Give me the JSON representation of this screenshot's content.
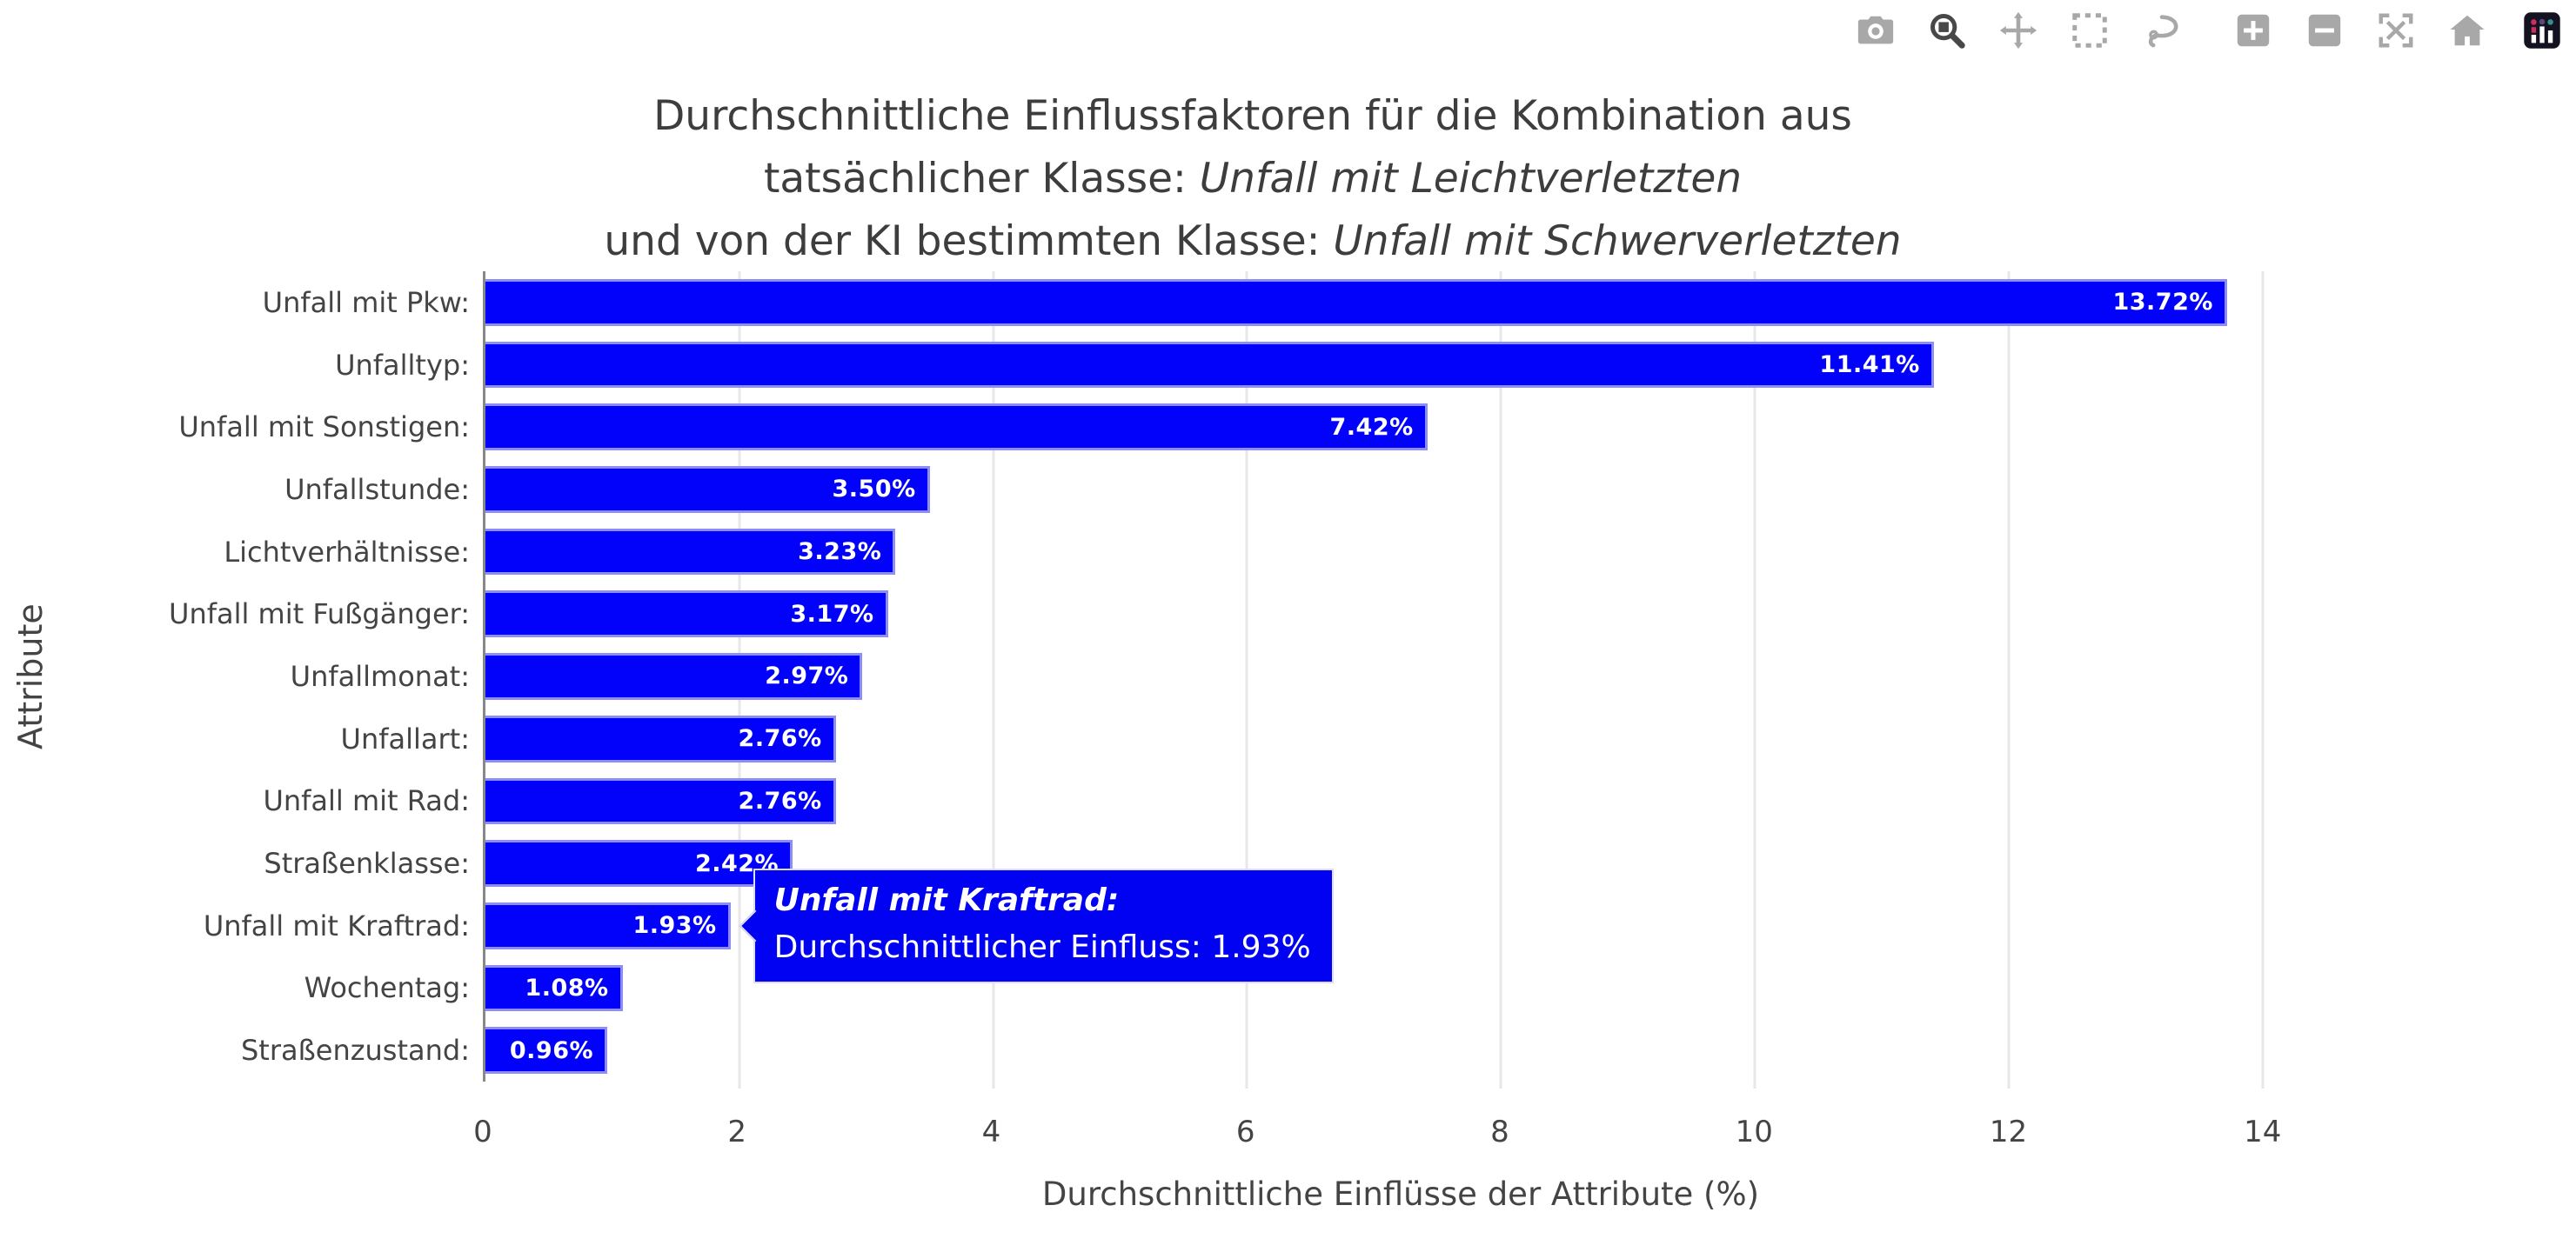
{
  "colors": {
    "bar": "#0202fa",
    "bar_border": "#8d8dfa",
    "tooltip_bg": "#0202f2",
    "tooltip_border": "#dcdcf5",
    "grid": "#e7e7e7",
    "axis": "#888888",
    "text": "#444444",
    "modebar": "#a8a8a8",
    "modebar_active": "#484848",
    "paper": "#ffffff"
  },
  "modebar": {
    "icons": [
      {
        "name": "camera-icon",
        "active": false
      },
      {
        "name": "zoom-icon",
        "active": true
      },
      {
        "name": "pan-icon",
        "active": false
      },
      {
        "name": "box-select-icon",
        "active": false
      },
      {
        "name": "lasso-select-icon",
        "active": false
      },
      {
        "name": "zoom-in-icon",
        "active": false
      },
      {
        "name": "zoom-out-icon",
        "active": false
      },
      {
        "name": "autoscale-icon",
        "active": false
      },
      {
        "name": "home-icon",
        "active": false
      },
      {
        "name": "plotly-logo-icon",
        "active": false
      }
    ]
  },
  "title": {
    "line1": "Durchschnittliche Einflussfaktoren für die Kombination aus",
    "line2_prefix": "tatsächlicher Klasse: ",
    "line2_italic": "Unfall mit Leichtverletzten",
    "line3_prefix": "und von der KI bestimmten Klasse: ",
    "line3_italic": "Unfall mit Schwerverletzten"
  },
  "chart_data": {
    "type": "bar",
    "orientation": "horizontal",
    "title": "Durchschnittliche Einflussfaktoren für die Kombination aus tatsächlicher Klasse: Unfall mit Leichtverletzten und von der KI bestimmten Klasse: Unfall mit Schwerverletzten",
    "categories": [
      "Unfall mit Pkw:",
      "Unfalltyp:",
      "Unfall mit Sonstigen:",
      "Unfallstunde:",
      "Lichtverhältnisse:",
      "Unfall mit Fußgänger:",
      "Unfallmonat:",
      "Unfallart:",
      "Unfall mit Rad:",
      "Straßenklasse:",
      "Unfall mit Kraftrad:",
      "Wochentag:",
      "Straßenzustand:"
    ],
    "values": [
      13.72,
      11.41,
      7.42,
      3.5,
      3.23,
      3.17,
      2.97,
      2.76,
      2.76,
      2.42,
      1.93,
      1.08,
      0.96
    ],
    "labels": [
      "13.72%",
      "11.41%",
      "7.42%",
      "3.50%",
      "3.23%",
      "3.17%",
      "2.97%",
      "2.76%",
      "2.76%",
      "2.42%",
      "1.93%",
      "1.08%",
      "0.96%"
    ],
    "xlabel": "Durchschnittliche Einflüsse der Attribute (%)",
    "ylabel": "Attribute",
    "xticks": [
      0,
      2,
      4,
      6,
      8,
      10,
      12,
      14
    ],
    "xlim": [
      0,
      14.44
    ],
    "grid": true,
    "legend": false,
    "bar_label_position": "inside-end"
  },
  "tooltip": {
    "category": "Unfall mit Kraftrad:",
    "text": "Durchschnittlicher Einfluss: 1.93%",
    "value": 1.93,
    "category_index": 10
  }
}
